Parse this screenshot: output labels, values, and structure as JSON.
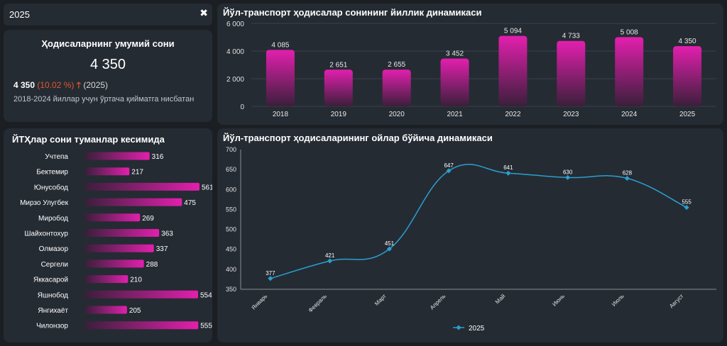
{
  "filter": {
    "year": "2025",
    "clear_icon": "close-icon"
  },
  "kpi": {
    "title": "Ҳодисаларнинг умумий сони",
    "total": "4 350",
    "current": "4 350",
    "percent": "(10.02 %)",
    "arrow": "🡑",
    "year_note": "(2025)",
    "description": "2018-2024 йиллар учун ўртача қийматга нисбатан",
    "trend_color": "#e0572c"
  },
  "colors": {
    "panel": "#252b33",
    "background": "#1b1f24",
    "bar_top": "#e31fae",
    "bar_bottom": "#3a1f3a",
    "line": "#2a9fd0"
  },
  "chart_data": [
    {
      "type": "bar",
      "title": "Йўл-транспорт ҳодисалар сонининг йиллик динамикаси",
      "categories": [
        "2018",
        "2019",
        "2020",
        "2021",
        "2022",
        "2023",
        "2024",
        "2025"
      ],
      "values": [
        4085,
        2651,
        2655,
        3452,
        5094,
        4733,
        5008,
        4350
      ],
      "value_labels": [
        "4 085",
        "2 651",
        "2 655",
        "3 452",
        "5 094",
        "4 733",
        "5 008",
        "4 350"
      ],
      "ylim": [
        0,
        6000
      ],
      "yticks": [
        0,
        2000,
        4000,
        6000
      ],
      "ytick_labels": [
        "0",
        "2 000",
        "4 000",
        "6 000"
      ],
      "grid": true
    },
    {
      "type": "bar",
      "orientation": "horizontal",
      "title": "ЙТҲлар сони туманлар кесимида",
      "categories": [
        "Учтепа",
        "Бектемир",
        "Юнусобод",
        "Мирзо Улугбек",
        "Миробод",
        "Шайхонтохур",
        "Олмазор",
        "Сергели",
        "Яккасарой",
        "Яшнобод",
        "Янгихаёт",
        "Чилонзор"
      ],
      "values": [
        316,
        217,
        561,
        475,
        269,
        363,
        337,
        288,
        210,
        554,
        205,
        555
      ],
      "xlim": [
        0,
        575
      ]
    },
    {
      "type": "line",
      "title": "Йўл-транспорт ҳодисаларининг ойлар бўйича динамикаси",
      "categories": [
        "Январь",
        "Февраль",
        "Март",
        "Апрель",
        "Май",
        "Июнь",
        "Июль",
        "Август"
      ],
      "series": [
        {
          "name": "2025",
          "values": [
            377,
            421,
            451,
            647,
            641,
            630,
            628,
            555
          ]
        }
      ],
      "ylim": [
        350,
        700
      ],
      "yticks": [
        350,
        400,
        450,
        500,
        550,
        600,
        650,
        700
      ],
      "grid": false,
      "legend": "bottom-center"
    }
  ]
}
